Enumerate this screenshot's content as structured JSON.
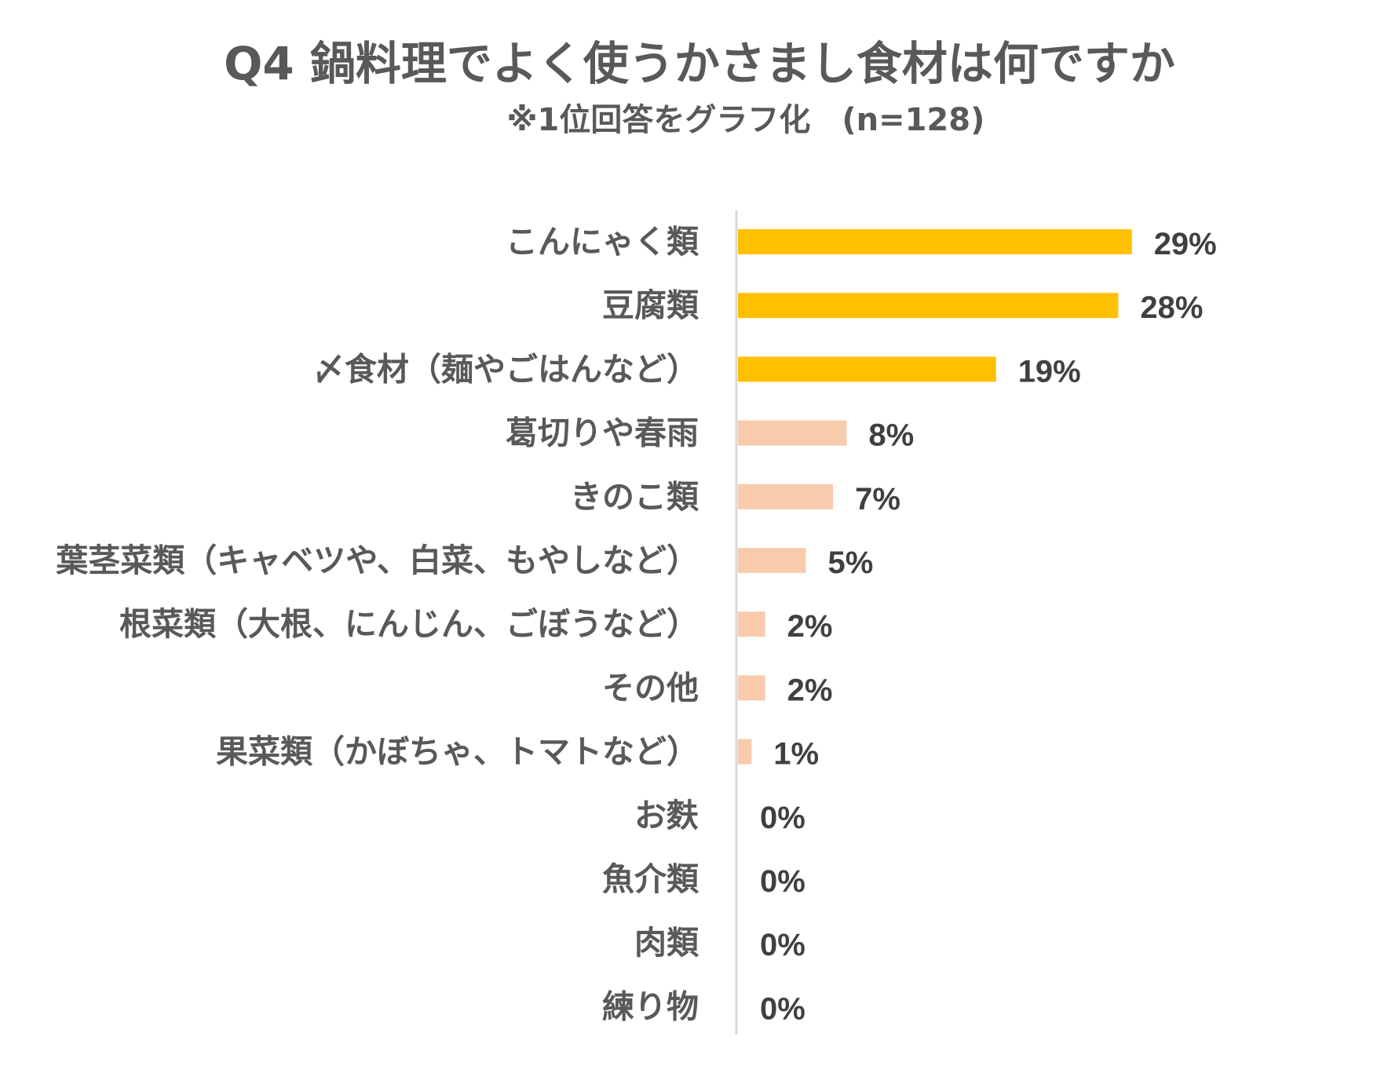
{
  "chart_data": {
    "type": "bar",
    "orientation": "horizontal",
    "title": "Q4 鍋料理でよく使うかさまし食材は何ですか",
    "subtitle": "※1位回答をグラフ化　(n=128)",
    "xlabel": "",
    "ylabel": "",
    "xlim": [
      0,
      35
    ],
    "grid": false,
    "legend": "none",
    "categories": [
      "こんにゃく類",
      "豆腐類",
      "〆食材（麺やごはんなど）",
      "葛切りや春雨",
      "きのこ類",
      "葉茎菜類（キャベツや、白菜、もやしなど）",
      "根菜類（大根、にんじん、ごぼうなど）",
      "その他",
      "果菜類（かぼちゃ、トマトなど）",
      "お麩",
      "魚介類",
      "肉類",
      "練り物"
    ],
    "values": [
      29,
      28,
      19,
      8,
      7,
      5,
      2,
      2,
      1,
      0,
      0,
      0,
      0
    ],
    "value_labels": [
      "29%",
      "28%",
      "19%",
      "8%",
      "7%",
      "5%",
      "2%",
      "2%",
      "1%",
      "0%",
      "0%",
      "0%",
      "0%"
    ],
    "highlight_count": 3,
    "colors": {
      "highlight": "#FFC000",
      "normal": "#F8CBAD",
      "axis": "#D9D9D9",
      "label": "#595959",
      "value_label": "#404040"
    }
  }
}
